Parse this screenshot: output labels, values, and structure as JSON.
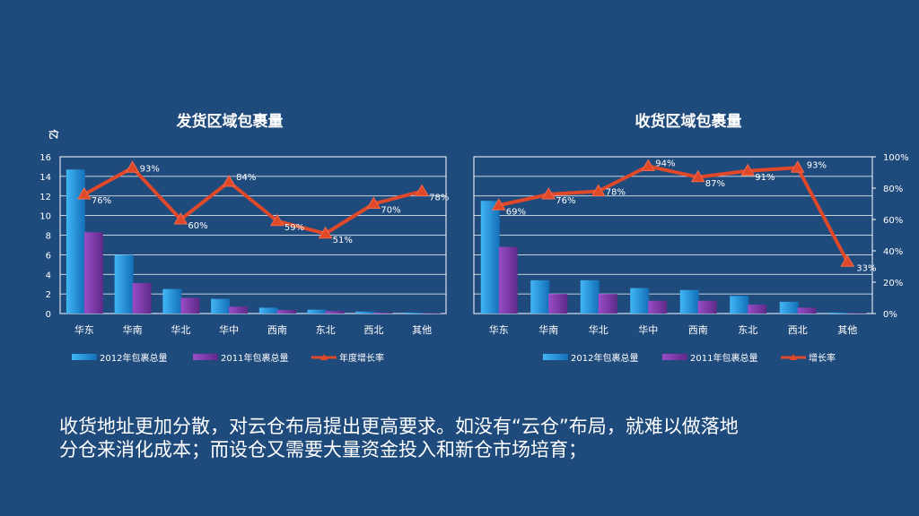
{
  "colors": {
    "background": "#1f4a7c",
    "bar_2012": "#1e9be0",
    "bar_2011": "#7b3aa8",
    "line": "#e0482a"
  },
  "chart_data": [
    {
      "type": "bar",
      "title": "发货区域包裹量",
      "ylabel": "亿",
      "categories": [
        "华东",
        "华南",
        "华北",
        "华中",
        "西南",
        "东北",
        "西北",
        "其他"
      ],
      "ylim": [
        0,
        16
      ],
      "yticks": [
        "0",
        "2",
        "4",
        "6",
        "8",
        "10",
        "12",
        "14",
        "16"
      ],
      "series": [
        {
          "name": "2012年包裹总量",
          "values": [
            14.7,
            6.0,
            2.5,
            1.5,
            0.6,
            0.4,
            0.2,
            0.1
          ]
        },
        {
          "name": "2011年包裹总量",
          "values": [
            8.3,
            3.1,
            1.6,
            0.7,
            0.35,
            0.25,
            0.1,
            0.05
          ]
        }
      ],
      "line": {
        "name": "年度增长率",
        "values": [
          76,
          93,
          60,
          84,
          59,
          51,
          70,
          78
        ],
        "labels": [
          "76%",
          "93%",
          "60%",
          "84%",
          "59%",
          "51%",
          "70%",
          "78%"
        ],
        "ylim": [
          0,
          100
        ]
      },
      "legend": "bottom"
    },
    {
      "type": "bar",
      "title": "收货区域包裹量",
      "categories": [
        "华东",
        "华南",
        "华北",
        "华中",
        "西南",
        "东北",
        "西北",
        "其他"
      ],
      "ylim": [
        0,
        16
      ],
      "y2ticks": [
        "0%",
        "20%",
        "40%",
        "60%",
        "80%",
        "100%"
      ],
      "series": [
        {
          "name": "2012年包裹总量",
          "values": [
            11.5,
            3.4,
            3.4,
            2.6,
            2.4,
            1.8,
            1.2,
            0.1
          ]
        },
        {
          "name": "2011年包裹总量",
          "values": [
            6.8,
            2.0,
            2.0,
            1.3,
            1.3,
            0.9,
            0.6,
            0.05
          ]
        }
      ],
      "line": {
        "name": "增长率",
        "values": [
          69,
          76,
          78,
          94,
          87,
          91,
          93,
          33
        ],
        "labels": [
          "69%",
          "76%",
          "78%",
          "94%",
          "87%",
          "91%",
          "93%",
          "33%"
        ],
        "ylim": [
          0,
          100
        ]
      },
      "legend": "bottom"
    }
  ],
  "caption": {
    "line1": "收货地址更加分散，对云仓布局提出更高要求。如没有“云仓”布局，就难以做落地",
    "line2": "分仓来消化成本；而设仓又需要大量资金投入和新仓市场培育；"
  }
}
